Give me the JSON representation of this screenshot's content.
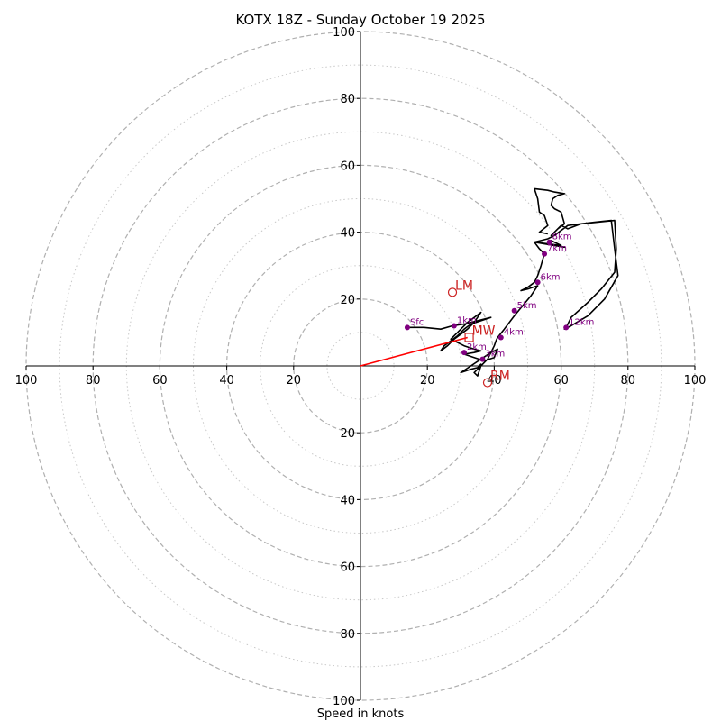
{
  "chart_data": {
    "type": "hodograph",
    "title": "KOTX 18Z - Sunday October 19 2025",
    "xlabel": "Speed in knots",
    "max_speed": 100,
    "rings_major": [
      20,
      40,
      60,
      80,
      100
    ],
    "rings_minor": [
      10,
      30,
      50,
      70,
      90
    ],
    "x_tick_labels": [
      "100",
      "80",
      "60",
      "40",
      "20",
      "20",
      "40",
      "60",
      "80",
      "100"
    ],
    "x_tick_values": [
      -100,
      -80,
      -60,
      -40,
      -20,
      20,
      40,
      60,
      80,
      100
    ],
    "y_tick_labels": [
      "100",
      "80",
      "60",
      "40",
      "20",
      "20",
      "40",
      "60",
      "80",
      "100"
    ],
    "y_tick_values": [
      100,
      80,
      60,
      40,
      20,
      -20,
      -40,
      -60,
      -80,
      -100
    ],
    "trace": [
      [
        14,
        11.5
      ],
      [
        19,
        11.5
      ],
      [
        24,
        11
      ],
      [
        27.5,
        12
      ],
      [
        31,
        12.5
      ],
      [
        35,
        13.5
      ],
      [
        39,
        14.5
      ],
      [
        33,
        12.5
      ],
      [
        31,
        11
      ],
      [
        29,
        9
      ],
      [
        27,
        7.5
      ],
      [
        25,
        6
      ],
      [
        24,
        4.5
      ],
      [
        26,
        6
      ],
      [
        28,
        8
      ],
      [
        30,
        9.5
      ],
      [
        32,
        11
      ],
      [
        34,
        13
      ],
      [
        36,
        16
      ],
      [
        32,
        13
      ],
      [
        29,
        10
      ],
      [
        27,
        8
      ],
      [
        31,
        6
      ],
      [
        34,
        5
      ],
      [
        36,
        4.5
      ],
      [
        34,
        4
      ],
      [
        31,
        3.5
      ],
      [
        34,
        2.5
      ],
      [
        37,
        1.5
      ],
      [
        40,
        2.5
      ],
      [
        41,
        5
      ],
      [
        39,
        4
      ],
      [
        36,
        2
      ],
      [
        33,
        0
      ],
      [
        30,
        -2
      ],
      [
        33,
        -1
      ],
      [
        35,
        -0.5
      ],
      [
        36,
        0.5
      ],
      [
        35,
        -1
      ],
      [
        34,
        -2
      ],
      [
        35,
        -3
      ],
      [
        36,
        0
      ],
      [
        37,
        1
      ],
      [
        38,
        2
      ],
      [
        39,
        4
      ],
      [
        40,
        6
      ],
      [
        40.5,
        7.5
      ],
      [
        41,
        8.5
      ],
      [
        43,
        11
      ],
      [
        46,
        15
      ],
      [
        48.5,
        18
      ],
      [
        51,
        21
      ],
      [
        53,
        24
      ],
      [
        50,
        23
      ],
      [
        48,
        22.5
      ],
      [
        50,
        23.5
      ],
      [
        52,
        25
      ],
      [
        53,
        27
      ],
      [
        54,
        30
      ],
      [
        55,
        33.5
      ],
      [
        53.5,
        35
      ],
      [
        52,
        37
      ],
      [
        55,
        36.5
      ],
      [
        58,
        36
      ],
      [
        61,
        35.5
      ],
      [
        58,
        36
      ],
      [
        56,
        37
      ],
      [
        57,
        37.5
      ],
      [
        60,
        36
      ],
      [
        56,
        36.5
      ],
      [
        52,
        37
      ],
      [
        54,
        37.5
      ],
      [
        56,
        38
      ],
      [
        58,
        39
      ],
      [
        60,
        40.5
      ],
      [
        62,
        42
      ],
      [
        66,
        42.5
      ],
      [
        71,
        43
      ],
      [
        76,
        43.5
      ],
      [
        76.5,
        35
      ],
      [
        76,
        28
      ],
      [
        72,
        23
      ],
      [
        68,
        19
      ],
      [
        63,
        14.5
      ],
      [
        61.5,
        11.5
      ],
      [
        61,
        11
      ],
      [
        63,
        12
      ],
      [
        68,
        15
      ],
      [
        73,
        20
      ],
      [
        77,
        27
      ],
      [
        76,
        35
      ],
      [
        75,
        43.5
      ],
      [
        70,
        43
      ],
      [
        66,
        42.5
      ],
      [
        62,
        41
      ],
      [
        60,
        42
      ],
      [
        57,
        39
      ],
      [
        59,
        41
      ],
      [
        61,
        42.5
      ],
      [
        60,
        46
      ],
      [
        58,
        47
      ],
      [
        57,
        48
      ],
      [
        57.5,
        50
      ],
      [
        59,
        51
      ],
      [
        61,
        51.5
      ],
      [
        58,
        52
      ],
      [
        56,
        52.5
      ],
      [
        52,
        53
      ],
      [
        53,
        50
      ],
      [
        53.5,
        46
      ],
      [
        55,
        45
      ],
      [
        56,
        42
      ],
      [
        53.5,
        40
      ],
      [
        56,
        39.5
      ]
    ],
    "altitude_points": [
      {
        "label": "Sfc",
        "u": 14,
        "v": 11.5
      },
      {
        "label": "1km",
        "u": 28,
        "v": 12
      },
      {
        "label": "2km",
        "u": 31,
        "v": 4
      },
      {
        "label": "3km",
        "u": 36.5,
        "v": 2
      },
      {
        "label": "4km",
        "u": 42,
        "v": 8.5
      },
      {
        "label": "5km",
        "u": 46,
        "v": 16.5
      },
      {
        "label": "6km",
        "u": 53,
        "v": 25
      },
      {
        "label": "7km",
        "u": 55,
        "v": 33.5
      },
      {
        "label": "8km",
        "u": 56.5,
        "v": 37
      },
      {
        "label": "12km",
        "u": 61.5,
        "v": 11.5
      }
    ],
    "storm_motions": [
      {
        "label": "LM",
        "u": 27.5,
        "v": 22,
        "marker": "circle"
      },
      {
        "label": "RM",
        "u": 38,
        "v": -5,
        "marker": "circle"
      },
      {
        "label": "MW",
        "u": 32.5,
        "v": 8.5,
        "marker": "square"
      }
    ],
    "mean_wind_vector": {
      "u": 32,
      "v": 8.5
    },
    "colors": {
      "trace": "#000000",
      "altitude": "#800080",
      "motion": "#cc2222",
      "vector": "#ff0000",
      "rings": "#b0b0b0"
    }
  }
}
